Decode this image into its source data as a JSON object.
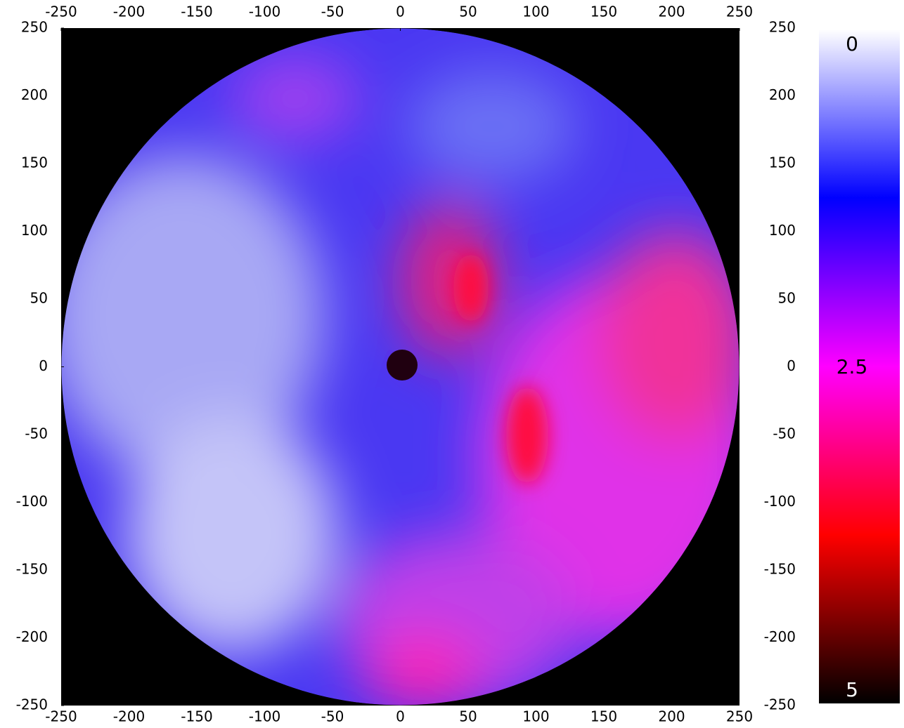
{
  "chart_data": {
    "type": "heatmap",
    "xlim": [
      -250,
      250
    ],
    "ylim": [
      -250,
      250
    ],
    "xticks": [
      -250,
      -200,
      -150,
      -100,
      -50,
      0,
      50,
      100,
      150,
      200,
      250
    ],
    "yticks": [
      -250,
      -200,
      -150,
      -100,
      -50,
      0,
      50,
      100,
      150,
      200,
      250
    ],
    "colorbar": {
      "lim": [
        0,
        5
      ],
      "ticks": [
        0,
        2.5,
        5
      ],
      "colors": [
        "#ffffff",
        "#0000ff",
        "#ff00ff",
        "#ff0000",
        "#000000"
      ]
    }
  }
}
